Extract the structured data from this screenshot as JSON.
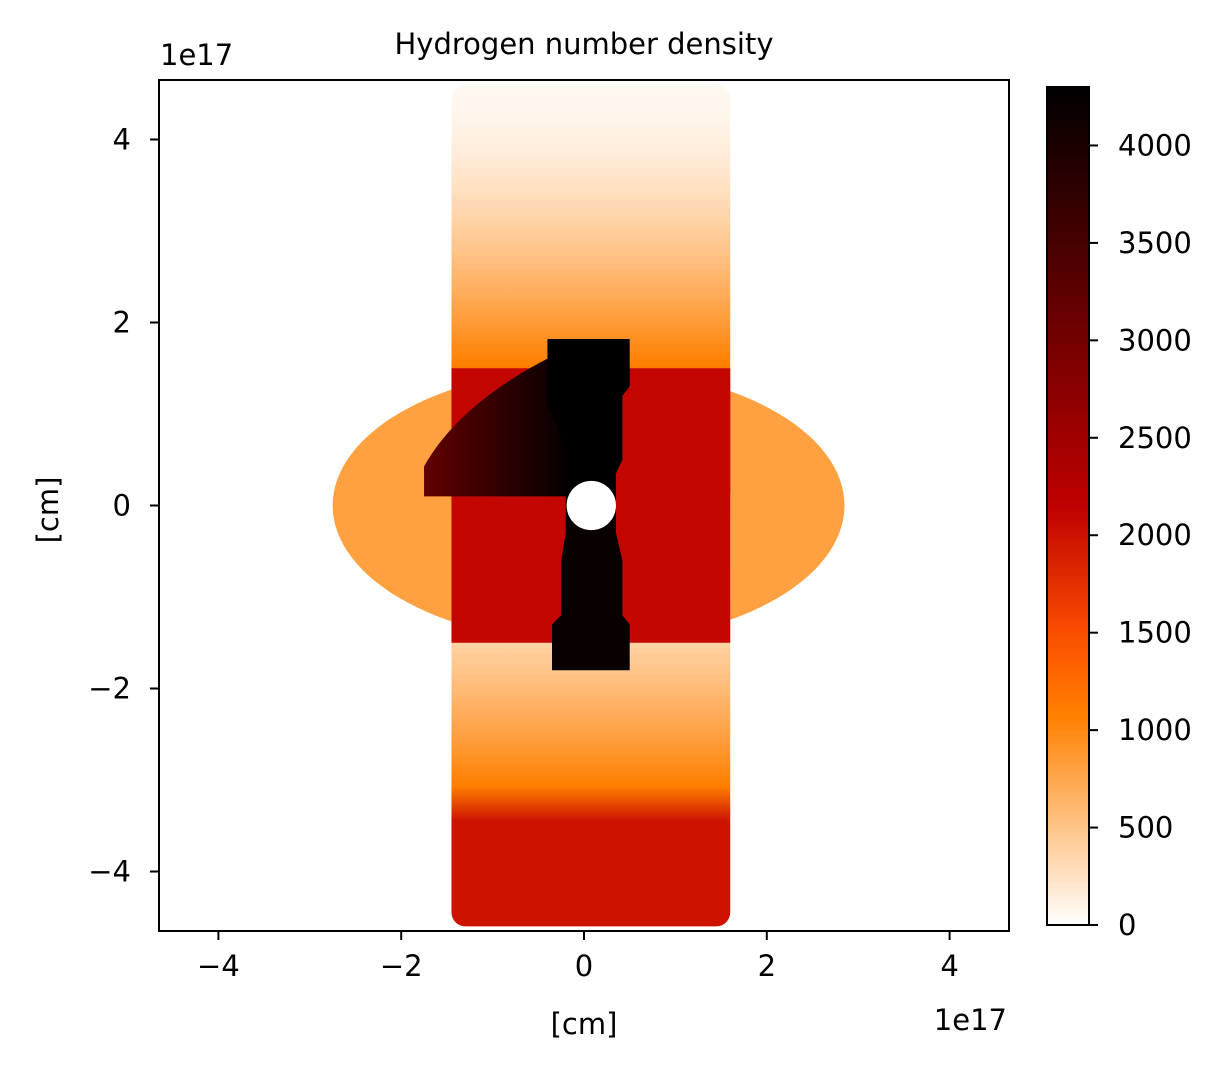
{
  "chart_data": {
    "type": "heatmap",
    "title": "Hydrogen number density",
    "xlabel": "[cm]",
    "ylabel": "[cm]",
    "x_offset_label": "1e17",
    "y_offset_label": "1e17",
    "xlim": [
      -4.65,
      4.65
    ],
    "ylim": [
      -4.65,
      4.65
    ],
    "x_ticks": [
      -4,
      -2,
      0,
      2,
      4
    ],
    "y_ticks": [
      -4,
      -2,
      0,
      2,
      4
    ],
    "x_tick_labels": [
      "−4",
      "−2",
      "0",
      "2",
      "4"
    ],
    "y_tick_labels": [
      "−4",
      "−2",
      "0",
      "2",
      "4"
    ],
    "grid": false,
    "colorbar": {
      "colormap": "gist_heat_r",
      "range": [
        0,
        4300
      ],
      "ticks": [
        0,
        500,
        1000,
        1500,
        2000,
        2500,
        3000,
        3500,
        4000
      ],
      "tick_labels": [
        "0",
        "500",
        "1000",
        "1500",
        "2000",
        "2500",
        "3000",
        "3500",
        "4000"
      ]
    },
    "regions": [
      {
        "name": "outer-ellipse",
        "shape": "ellipse",
        "cx": 0.05,
        "cy": 0,
        "rx": 2.8,
        "ry": 1.5,
        "value": 800
      },
      {
        "name": "upper-lobe",
        "shape": "rounded-rect",
        "x": [
          -1.45,
          1.6
        ],
        "y": [
          0,
          4.6
        ],
        "value_at_center": 2000,
        "value_at_edge": 50,
        "falloff_start": 1.5
      },
      {
        "name": "lower-lobe",
        "shape": "rounded-rect",
        "x": [
          -1.45,
          1.6
        ],
        "y": [
          -4.6,
          0
        ],
        "value_at_center": 2000,
        "value_at_edge": 50,
        "falloff_start": 1.5
      },
      {
        "name": "central-block",
        "shape": "rect",
        "x": [
          -1.45,
          1.6
        ],
        "y": [
          -1.5,
          1.5
        ],
        "value": 2100
      },
      {
        "name": "fan-sector",
        "shape": "sector",
        "x": [
          -1.75,
          -0.1
        ],
        "y": [
          0.1,
          1.75
        ],
        "value_min": 3200,
        "value_max": 4300
      },
      {
        "name": "upper-jet",
        "shape": "polygon",
        "value": 4300
      },
      {
        "name": "lower-jet",
        "shape": "polygon",
        "value": 4200
      },
      {
        "name": "center-hole",
        "shape": "circle",
        "cx": 0.08,
        "cy": 0,
        "r": 0.27,
        "value": 0
      }
    ]
  }
}
